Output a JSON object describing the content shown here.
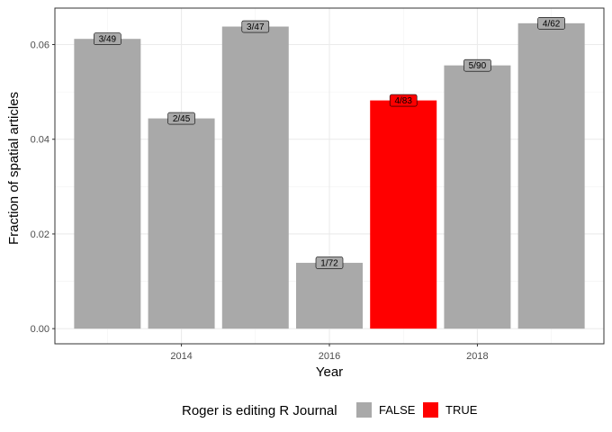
{
  "chart_data": {
    "type": "bar",
    "x": [
      2013,
      2014,
      2015,
      2016,
      2017,
      2018,
      2019
    ],
    "values": [
      0.0612,
      0.0444,
      0.0638,
      0.0139,
      0.0482,
      0.0556,
      0.0645
    ],
    "bar_labels": [
      "3/49",
      "2/45",
      "3/47",
      "1/72",
      "4/83",
      "5/90",
      "4/62"
    ],
    "fill_group": [
      "FALSE",
      "FALSE",
      "FALSE",
      "FALSE",
      "TRUE",
      "FALSE",
      "FALSE"
    ],
    "xlabel": "Year",
    "ylabel": "Fraction of spatial articles",
    "x_ticks": [
      2014,
      2016,
      2018
    ],
    "x_tick_labels": [
      "2014",
      "2016",
      "2018"
    ],
    "y_ticks": [
      0,
      0.02,
      0.04,
      0.06
    ],
    "y_tick_labels": [
      "0.00",
      "0.02",
      "0.04",
      "0.06"
    ],
    "xlim": [
      2012.29,
      2019.71
    ],
    "ylim": [
      -0.0032,
      0.0677
    ],
    "grid": true,
    "legend": {
      "title": "Roger is editing R Journal",
      "position": "bottom",
      "entries": [
        {
          "label": "FALSE",
          "color": "#a9a9a9"
        },
        {
          "label": "TRUE",
          "color": "#ff0000"
        }
      ]
    },
    "colors": {
      "FALSE": "#a9a9a9",
      "TRUE": "#ff0000"
    }
  }
}
